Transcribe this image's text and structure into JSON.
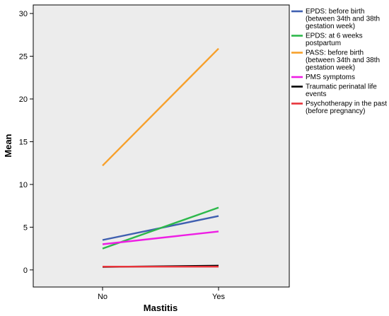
{
  "chart_data": {
    "type": "line",
    "title": "",
    "xlabel": "Mastitis",
    "ylabel": "Mean",
    "categories": [
      "No",
      "Yes"
    ],
    "ylim": [
      -2,
      31
    ],
    "yticks": [
      0,
      5,
      10,
      15,
      20,
      25,
      30
    ],
    "grid": false,
    "legend_position": "right",
    "background_color": "#ececec",
    "series": [
      {
        "name": [
          "EPDS: before birth",
          "(between 34th and 38th",
          "gestation week)"
        ],
        "color": "#3f5fb0",
        "values": [
          3.5,
          6.3
        ]
      },
      {
        "name": [
          "EPDS: at 6 weeks",
          "postpartum"
        ],
        "color": "#2db84b",
        "values": [
          2.5,
          7.3
        ]
      },
      {
        "name": [
          "PASS: before birth",
          "(between 34th and 38th",
          "gestation week)"
        ],
        "color": "#f7a02b",
        "values": [
          12.2,
          25.9
        ]
      },
      {
        "name": [
          "PMS symptoms"
        ],
        "color": "#ee1ee4",
        "values": [
          3.0,
          4.5
        ]
      },
      {
        "name": [
          "Traumatic perinatal life",
          "events"
        ],
        "color": "#000000",
        "values": [
          0.35,
          0.5
        ]
      },
      {
        "name": [
          "Psychotherapy in the past",
          "(before pregnancy)"
        ],
        "color": "#e8333a",
        "values": [
          0.38,
          0.38
        ]
      }
    ]
  }
}
